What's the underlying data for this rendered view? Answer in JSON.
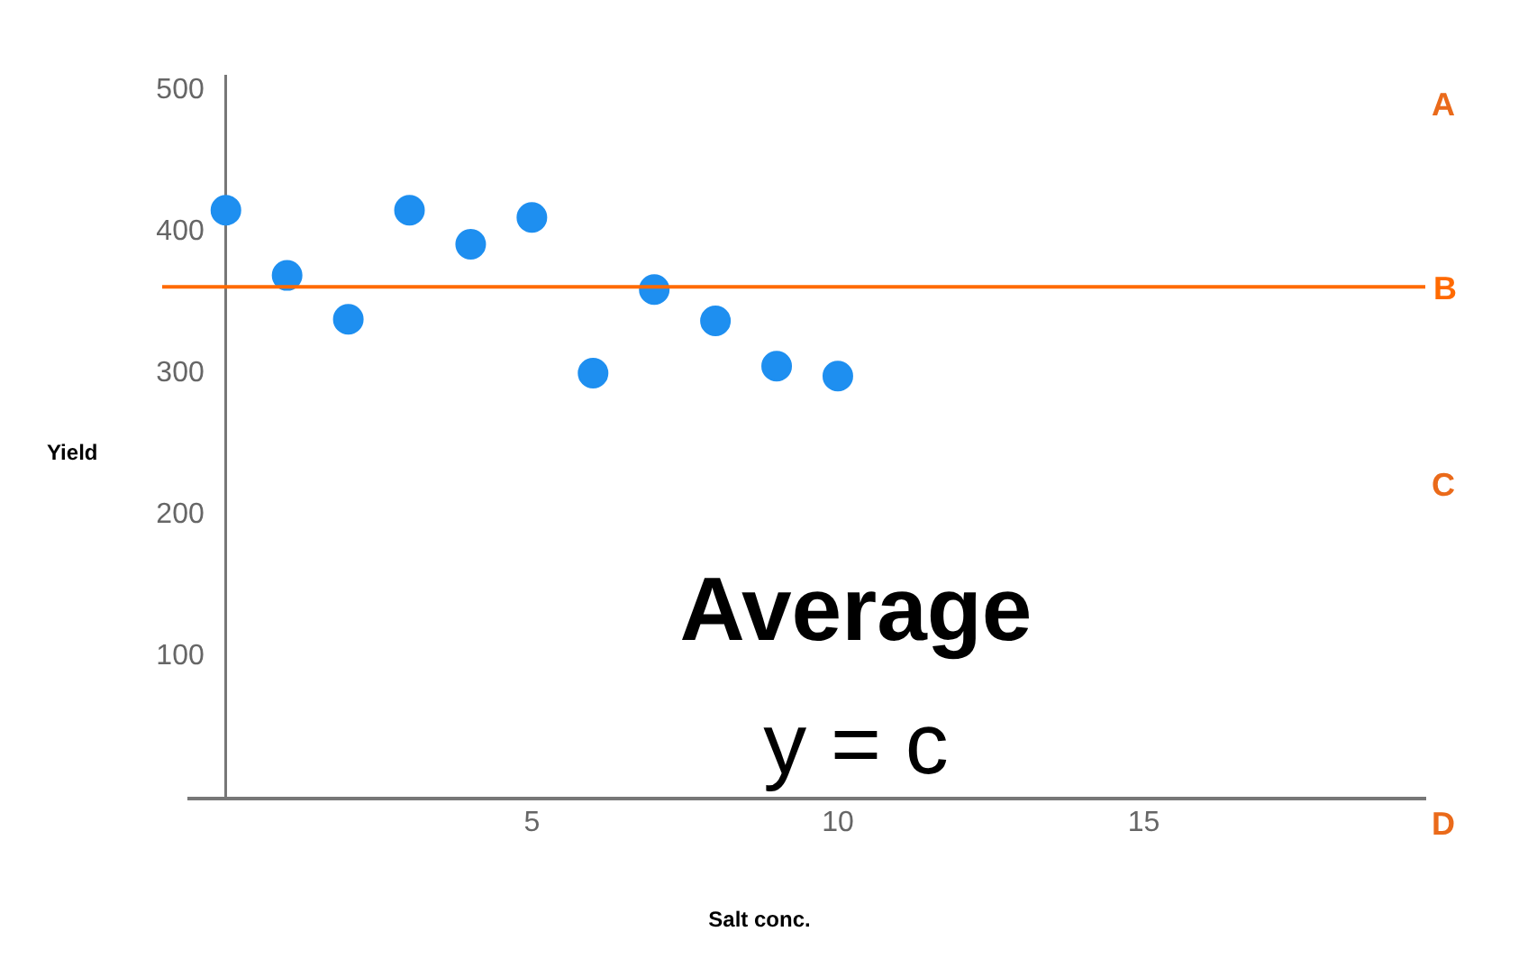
{
  "chart_data": {
    "type": "scatter",
    "xlabel": "Salt conc.",
    "ylabel": "Yield",
    "x": [
      0,
      1,
      2,
      3,
      4,
      5,
      6,
      7,
      8,
      9,
      10
    ],
    "series": [
      {
        "color": "#1e8ff0",
        "values": [
          415,
          369,
          338,
          415,
          391,
          410,
          300,
          359,
          337,
          305,
          298
        ]
      }
    ],
    "xlim": [
      -0.6,
      19.6
    ],
    "xticks": [
      5,
      10,
      15
    ],
    "ylim": [
      0,
      510
    ],
    "yticks": [
      100,
      200,
      300,
      400,
      500
    ],
    "grid": false,
    "legend": false,
    "marker": "circle",
    "ref_lines": [
      {
        "axis": "y",
        "value": 361,
        "label": "B",
        "color": "#ff6a00"
      }
    ],
    "annotations": [
      "A",
      "C",
      "D",
      "Average",
      "y = c"
    ]
  }
}
